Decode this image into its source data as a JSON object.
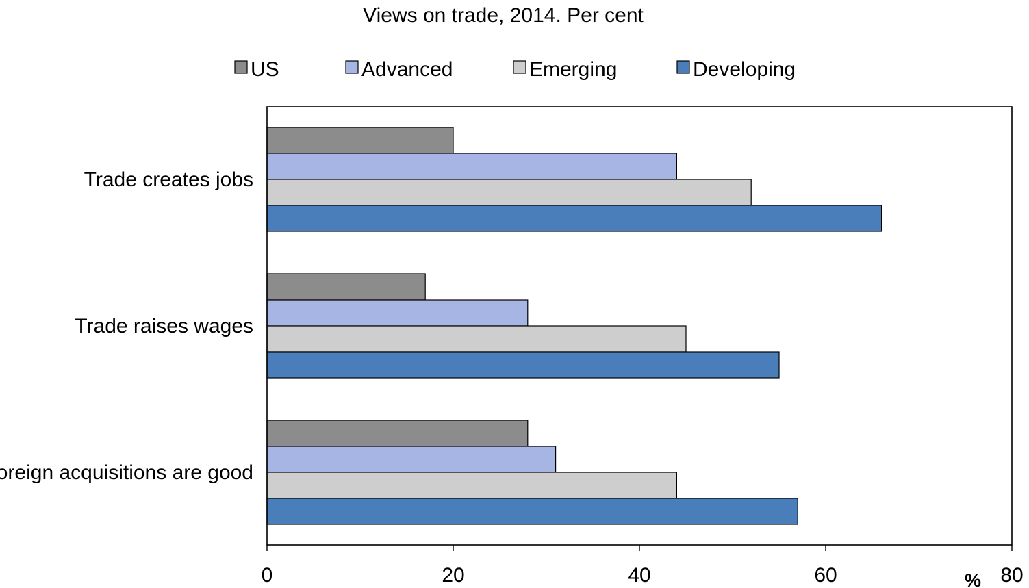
{
  "chart_data": {
    "type": "bar",
    "orientation": "horizontal",
    "title": "Views on trade, 2014. Per cent",
    "xlabel": "",
    "ylabel": "",
    "unit_label": "%",
    "categories": [
      "Trade creates jobs",
      "Trade raises wages",
      "Foreign acquisitions are good"
    ],
    "series": [
      {
        "name": "US",
        "color": "#8c8c8c",
        "values": [
          20,
          17,
          28
        ]
      },
      {
        "name": "Advanced",
        "color": "#a6b5e3",
        "values": [
          44,
          28,
          31
        ]
      },
      {
        "name": "Emerging",
        "color": "#cecece",
        "values": [
          52,
          45,
          44
        ]
      },
      {
        "name": "Developing",
        "color": "#4a7ebb",
        "values": [
          66,
          55,
          57
        ]
      }
    ],
    "xlim": [
      0,
      80
    ],
    "xticks": [
      0,
      20,
      40,
      60,
      80
    ],
    "grid": false,
    "legend_position": "top"
  }
}
